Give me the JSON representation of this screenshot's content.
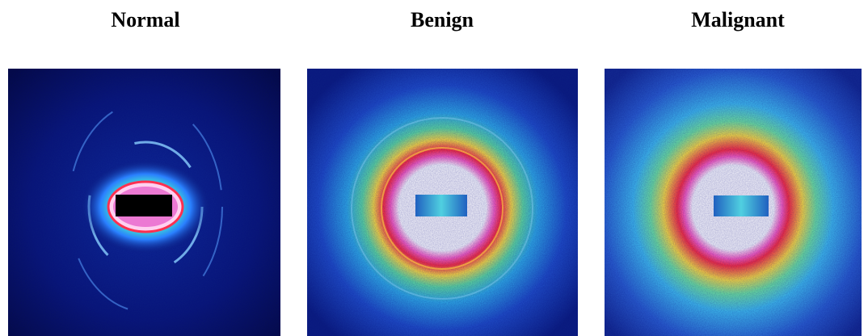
{
  "panels": [
    {
      "label": "Normal"
    },
    {
      "label": "Benign"
    },
    {
      "label": "Malignant"
    }
  ]
}
